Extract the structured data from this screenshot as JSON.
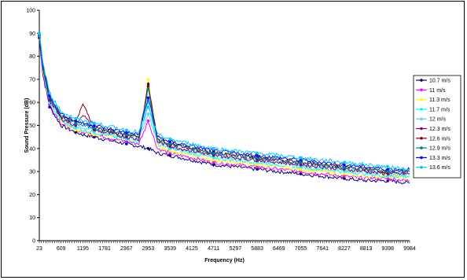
{
  "chart_data": {
    "type": "line",
    "title": "",
    "xlabel": "Frequency (Hz)",
    "ylabel": "Sound Pressure (dB)",
    "ylim": [
      0,
      100
    ],
    "y_ticks": [
      0,
      10,
      20,
      30,
      40,
      50,
      60,
      70,
      80,
      90,
      100
    ],
    "x_ticks": [
      "23",
      "609",
      "1195",
      "1781",
      "2367",
      "2953",
      "3539",
      "4125",
      "4711",
      "5297",
      "5883",
      "6469",
      "7055",
      "7641",
      "8227",
      "8813",
      "9398",
      "9984"
    ],
    "xlim": [
      23,
      9984
    ],
    "grid": false,
    "legend_position": "right",
    "x": [
      23,
      120,
      300,
      609,
      1000,
      1195,
      1500,
      1781,
      2367,
      2700,
      2953,
      3200,
      3539,
      4125,
      4711,
      5297,
      5883,
      6469,
      7055,
      7641,
      8227,
      8813,
      9398,
      9984
    ],
    "series": [
      {
        "name": "10.7 m/s",
        "color": "#000080",
        "values": [
          88,
          72,
          58,
          50,
          47,
          46,
          45,
          44,
          42,
          41,
          40,
          38,
          37,
          35,
          33,
          32,
          31,
          30,
          29,
          28,
          27,
          26,
          26,
          25
        ]
      },
      {
        "name": "11 m/s",
        "color": "#ff00ff",
        "values": [
          89,
          73,
          59,
          51,
          48,
          47,
          46,
          45,
          43,
          42,
          52,
          40,
          38,
          36,
          34,
          33,
          32,
          31,
          30,
          29,
          28,
          27,
          27,
          26
        ]
      },
      {
        "name": "11.3 m/s",
        "color": "#ffff00",
        "values": [
          90,
          74,
          60,
          52,
          48,
          47,
          46,
          46,
          44,
          43,
          70,
          41,
          39,
          37,
          35,
          34,
          33,
          32,
          31,
          30,
          29,
          28,
          28,
          27
        ]
      },
      {
        "name": "11.7 m/s",
        "color": "#00ffff",
        "values": [
          90,
          74,
          60,
          52,
          49,
          48,
          47,
          46,
          44,
          43,
          60,
          42,
          40,
          38,
          36,
          35,
          34,
          33,
          32,
          31,
          30,
          29,
          28,
          28
        ]
      },
      {
        "name": "12 m/s",
        "color": "#66ccff",
        "values": [
          90,
          75,
          61,
          53,
          50,
          49,
          48,
          47,
          45,
          44,
          55,
          43,
          41,
          39,
          37,
          36,
          35,
          34,
          33,
          32,
          31,
          30,
          29,
          29
        ]
      },
      {
        "name": "12.3 m/s",
        "color": "#800080",
        "values": [
          89,
          75,
          61,
          53,
          50,
          55,
          48,
          47,
          45,
          44,
          67,
          43,
          41,
          39,
          37,
          36,
          35,
          34,
          33,
          32,
          31,
          30,
          29,
          29
        ]
      },
      {
        "name": "12.6 m/s",
        "color": "#800000",
        "values": [
          88,
          75,
          62,
          54,
          51,
          60,
          49,
          48,
          46,
          45,
          68,
          44,
          42,
          40,
          38,
          37,
          36,
          35,
          34,
          33,
          32,
          31,
          30,
          30
        ]
      },
      {
        "name": "12.9 m/s",
        "color": "#008080",
        "values": [
          89,
          76,
          62,
          54,
          51,
          50,
          49,
          48,
          46,
          45,
          66,
          44,
          42,
          40,
          38,
          37,
          36,
          35,
          34,
          33,
          32,
          31,
          30,
          30
        ]
      },
      {
        "name": "13.3 m/s",
        "color": "#0000ff",
        "values": [
          90,
          76,
          63,
          55,
          52,
          51,
          50,
          49,
          47,
          46,
          62,
          45,
          43,
          41,
          39,
          38,
          37,
          36,
          35,
          34,
          33,
          32,
          31,
          31
        ]
      },
      {
        "name": "13.6 m/s",
        "color": "#00ccff",
        "values": [
          90,
          77,
          64,
          56,
          53,
          52,
          51,
          50,
          48,
          47,
          58,
          46,
          44,
          42,
          40,
          39,
          38,
          37,
          36,
          35,
          34,
          33,
          32,
          31
        ]
      }
    ]
  }
}
